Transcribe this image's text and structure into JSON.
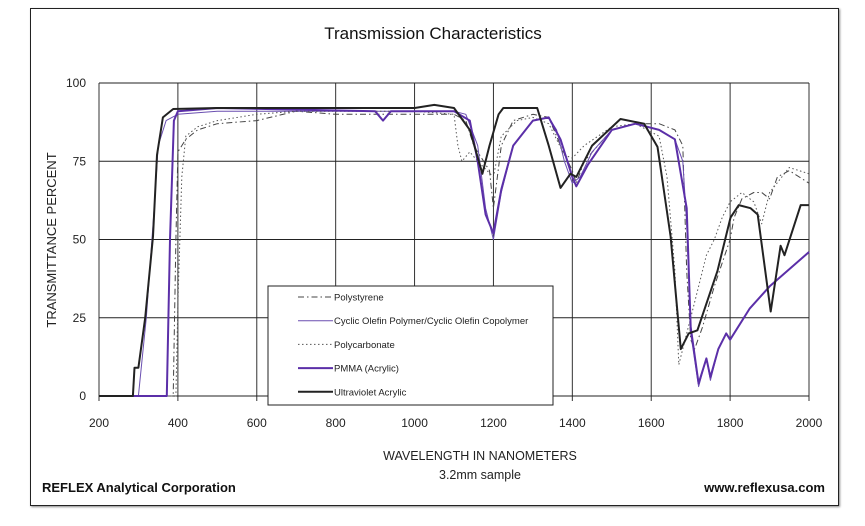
{
  "chart_data": {
    "type": "line",
    "title": "Transmission Characteristics",
    "xlabel": "WAVELENGTH IN NANOMETERS",
    "xlabel_sub": "3.2mm sample",
    "ylabel": "TRANSMITTANCE PERCENT",
    "xlim": [
      200,
      2000
    ],
    "ylim": [
      0,
      100
    ],
    "xticks": [
      200,
      400,
      600,
      800,
      1000,
      1200,
      1400,
      1600,
      1800,
      2000
    ],
    "yticks": [
      0,
      25,
      50,
      75,
      100
    ],
    "grid": true,
    "legend_position": "bottom-center",
    "series": [
      {
        "name": "Polystyrene",
        "color": "#444444",
        "style": "dashdot",
        "width": 1,
        "x": [
          200,
          388,
          395,
          400,
          420,
          450,
          500,
          600,
          700,
          800,
          900,
          1000,
          1100,
          1130,
          1150,
          1170,
          1190,
          1200,
          1220,
          1250,
          1300,
          1340,
          1370,
          1400,
          1410,
          1430,
          1500,
          1560,
          1620,
          1660,
          1680,
          1690,
          1700,
          1710,
          1730,
          1760,
          1800,
          1810,
          1830,
          1860,
          1880,
          1900,
          1920,
          1950,
          2000
        ],
        "y": [
          0,
          0,
          50,
          78,
          82,
          85,
          87,
          88,
          91,
          90,
          90,
          90,
          90,
          88,
          80,
          76,
          72,
          60,
          80,
          88,
          90,
          89,
          80,
          72,
          68,
          75,
          85,
          87,
          87,
          85,
          80,
          40,
          18,
          15,
          22,
          35,
          50,
          57,
          63,
          65,
          65,
          63,
          70,
          72,
          68
        ]
      },
      {
        "name": "Cyclic Olefin Polymer/Cyclic Olefin Copolymer",
        "color": "#6a4fb0",
        "style": "solid",
        "width": 1,
        "x": [
          200,
          300,
          320,
          340,
          350,
          370,
          400,
          500,
          800,
          1100,
          1130,
          1160,
          1180,
          1200,
          1220,
          1250,
          1300,
          1340,
          1360,
          1380,
          1400,
          1420,
          1450,
          1500,
          1560,
          1620,
          1660,
          1680,
          1690,
          1700,
          1720,
          1740,
          1750,
          1770,
          1790,
          1800,
          1850,
          1900,
          2000
        ],
        "y": [
          0,
          0,
          25,
          60,
          80,
          88,
          90,
          91,
          91,
          91,
          90,
          80,
          60,
          50,
          65,
          80,
          88,
          89,
          85,
          75,
          68,
          70,
          78,
          85,
          87,
          85,
          82,
          75,
          55,
          20,
          3,
          12,
          5,
          15,
          20,
          18,
          28,
          35,
          46
        ]
      },
      {
        "name": "Polycarbonate",
        "color": "#555555",
        "style": "dotted",
        "width": 1,
        "x": [
          200,
          395,
          400,
          410,
          420,
          450,
          500,
          600,
          700,
          1000,
          1100,
          1110,
          1120,
          1140,
          1160,
          1200,
          1220,
          1260,
          1300,
          1340,
          1380,
          1400,
          1430,
          1500,
          1560,
          1620,
          1640,
          1660,
          1670,
          1690,
          1700,
          1720,
          1740,
          1760,
          1780,
          1800,
          1830,
          1860,
          1880,
          1900,
          1950,
          2000
        ],
        "y": [
          0,
          0,
          30,
          70,
          83,
          86,
          88,
          90,
          91,
          91,
          90,
          80,
          75,
          78,
          75,
          70,
          83,
          88,
          89,
          87,
          77,
          76,
          80,
          86,
          87,
          83,
          70,
          40,
          10,
          20,
          25,
          35,
          45,
          50,
          57,
          62,
          65,
          62,
          55,
          65,
          73,
          71
        ]
      },
      {
        "name": "PMMA (Acrylic)",
        "color": "#5b2fa8",
        "style": "solid",
        "width": 2,
        "x": [
          200,
          372,
          380,
          390,
          400,
          500,
          900,
          920,
          940,
          1100,
          1140,
          1160,
          1180,
          1200,
          1220,
          1250,
          1300,
          1340,
          1370,
          1400,
          1410,
          1440,
          1500,
          1560,
          1620,
          1660,
          1690,
          1700,
          1720,
          1740,
          1750,
          1770,
          1790,
          1800,
          1850,
          1900,
          2000
        ],
        "y": [
          0,
          0,
          50,
          88,
          91,
          92,
          91,
          88,
          91,
          91,
          88,
          75,
          58,
          52,
          66,
          80,
          88,
          89,
          82,
          70,
          67,
          74,
          85,
          87,
          85,
          82,
          60,
          22,
          4,
          12,
          6,
          15,
          20,
          18,
          28,
          35,
          46
        ]
      },
      {
        "name": "Ultraviolet  Acrylic",
        "color": "#222222",
        "style": "solid",
        "width": 2,
        "x": [
          200,
          286,
          290,
          300,
          317,
          337,
          347,
          362,
          388,
          500,
          800,
          1000,
          1050,
          1100,
          1140,
          1172,
          1190,
          1213,
          1225,
          1311,
          1340,
          1370,
          1395,
          1410,
          1450,
          1522,
          1582,
          1616,
          1649,
          1675,
          1695,
          1717,
          1768,
          1801,
          1822,
          1852,
          1870,
          1903,
          1928,
          1938,
          1979,
          2000
        ],
        "y": [
          0,
          0,
          9,
          9,
          25,
          51,
          77,
          89,
          91.7,
          92,
          92,
          92,
          93,
          92,
          85,
          71,
          80,
          90,
          92,
          92,
          80,
          66.5,
          71,
          70,
          80,
          88.5,
          87,
          79.6,
          51,
          15,
          20,
          21,
          40,
          57,
          61,
          60,
          58,
          27,
          48,
          45,
          61,
          61
        ]
      }
    ]
  },
  "footer": {
    "company": "REFLEX Analytical Corporation",
    "website": "www.reflexusa.com"
  }
}
